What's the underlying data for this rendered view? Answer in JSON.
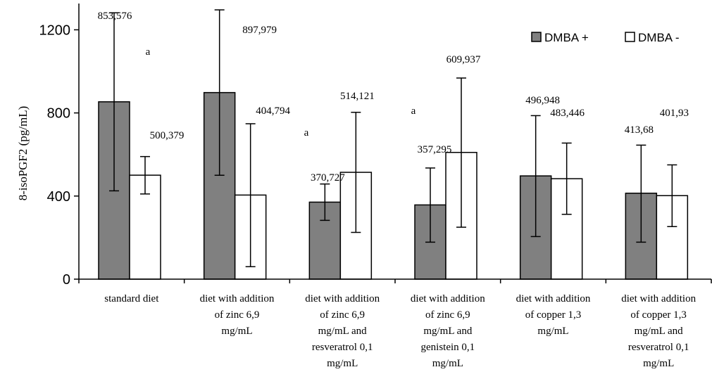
{
  "chart_data": {
    "type": "bar",
    "ylabel": "8-isoPGF2 (pg/mL)",
    "ylim": [
      0,
      1300
    ],
    "yticks": [
      0,
      400,
      800,
      1200
    ],
    "grid": false,
    "legend_position": "top-right",
    "categories": [
      [
        "standard diet"
      ],
      [
        "diet with addition",
        "of zinc 6,9",
        "mg/mL"
      ],
      [
        "diet with addition",
        "of zinc 6,9",
        "mg/mL and",
        "resveratrol 0,1",
        "mg/mL"
      ],
      [
        "diet with addition",
        "of zinc 6,9",
        "mg/mL and",
        "genistein 0,1",
        "mg/mL"
      ],
      [
        "diet with addition",
        "of copper 1,3",
        "mg/mL"
      ],
      [
        "diet with addition",
        "of copper 1,3",
        "mg/mL and",
        "resveratrol 0,1",
        "mg/mL"
      ]
    ],
    "series": [
      {
        "name": "DMBA +",
        "color": "#808080",
        "values": [
          853.576,
          897.979,
          370.727,
          357.295,
          496.948,
          413.68
        ],
        "value_labels": [
          "853,576",
          "897,979",
          "370,727",
          "357,295",
          "496,948",
          "413,68"
        ],
        "error_low": [
          425,
          500,
          283,
          178,
          205,
          178
        ],
        "error_high": [
          1282,
          1296,
          458,
          535,
          787,
          645
        ]
      },
      {
        "name": "DMBA -",
        "color": "#ffffff",
        "values": [
          500.379,
          404.794,
          514.121,
          609.937,
          483.446,
          401.93
        ],
        "value_labels": [
          "500,379",
          "404,794",
          "514,121",
          "609,937",
          "483,446",
          "401,93"
        ],
        "error_low": [
          410,
          60,
          225,
          250,
          312,
          253
        ],
        "error_high": [
          590,
          748,
          803,
          968,
          655,
          550
        ]
      }
    ],
    "annotations": [
      {
        "text": "a",
        "category": 0,
        "y": 1120
      },
      {
        "text": "a",
        "category": 2,
        "y": 705
      },
      {
        "text": "a",
        "category": 3,
        "y": 800
      }
    ]
  }
}
